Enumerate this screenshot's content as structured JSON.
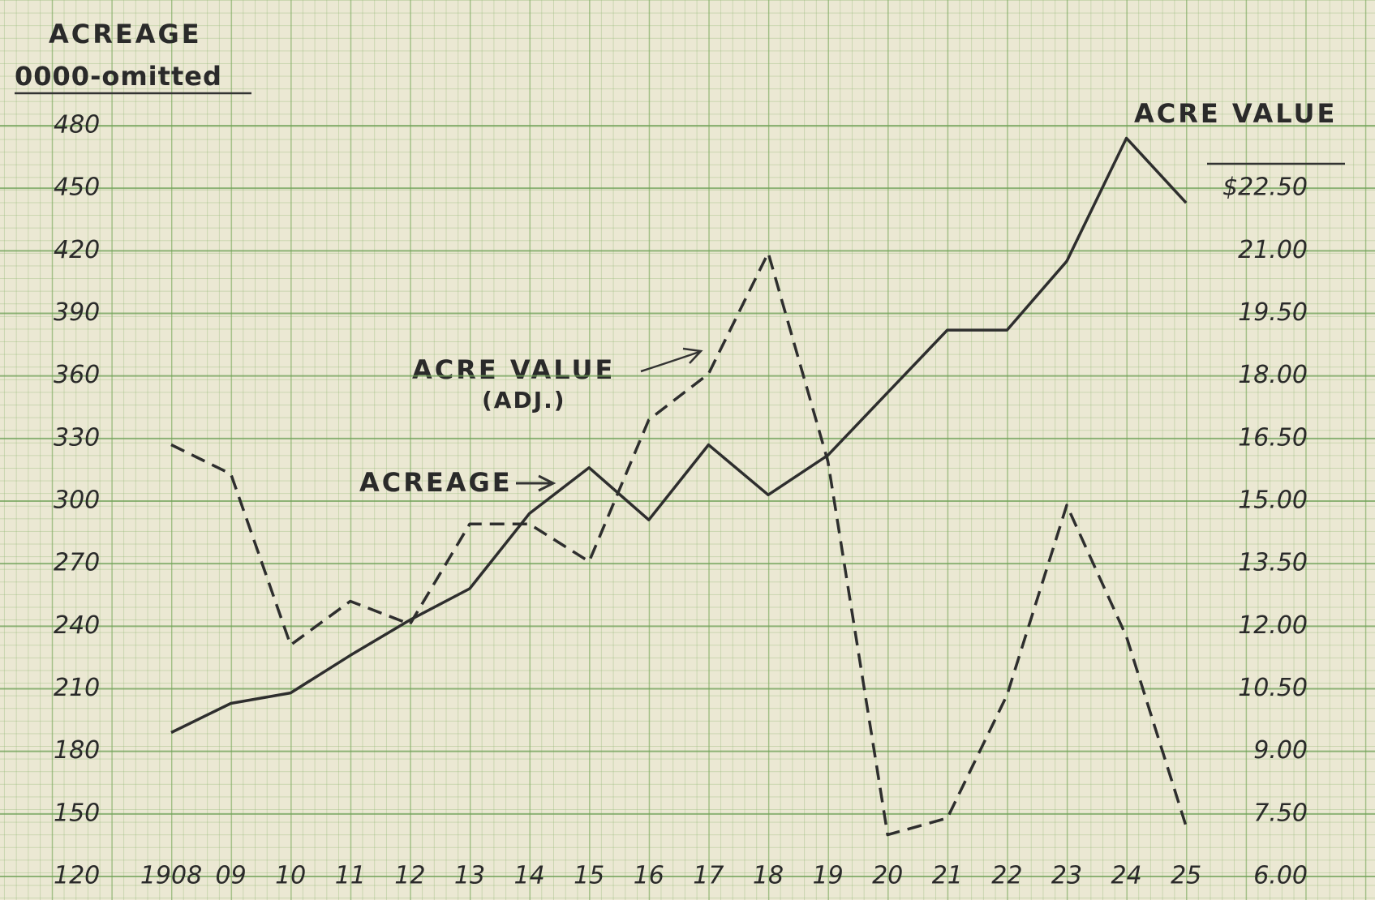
{
  "chart_data": {
    "type": "line",
    "y_label": "ACREAGE",
    "y_label_note": "0000-omitted",
    "y2_label": "ACRE VALUE",
    "annotations": [
      "(ADJ.)"
    ],
    "categories": [
      "1908",
      "09",
      "10",
      "11",
      "12",
      "13",
      "14",
      "15",
      "16",
      "17",
      "18",
      "19",
      "20",
      "21",
      "22",
      "23",
      "24",
      "25"
    ],
    "series": [
      {
        "name": "ACREAGE",
        "color": "#2e2e2e",
        "dashed": false,
        "values": [
          189,
          203,
          208,
          226,
          243,
          258,
          294,
          316,
          291,
          327,
          303,
          322,
          352,
          382,
          382,
          415,
          474,
          443
        ]
      },
      {
        "name": "ACRE VALUE",
        "color": "#2e2e2e",
        "dashed": true,
        "axis": "y2",
        "values": [
          16.35,
          15.65,
          11.55,
          12.6,
          12.05,
          14.45,
          14.45,
          13.55,
          16.95,
          18.05,
          20.95,
          15.95,
          7.0,
          7.4,
          10.35,
          14.9,
          11.75,
          7.2
        ]
      }
    ],
    "ylim": [
      120,
      480
    ],
    "yticks": [
      120,
      150,
      180,
      210,
      240,
      270,
      300,
      330,
      360,
      390,
      420,
      450,
      480
    ],
    "y2lim": [
      6,
      24
    ],
    "y2ticks": [
      {
        "value": 6,
        "label": "6.00"
      },
      {
        "value": 7.5,
        "label": "7.50"
      },
      {
        "value": 9,
        "label": "9.00"
      },
      {
        "value": 10.5,
        "label": "10.50"
      },
      {
        "value": 12,
        "label": "12.00"
      },
      {
        "value": 13.5,
        "label": "13.50"
      },
      {
        "value": 15,
        "label": "15.00"
      },
      {
        "value": 16.5,
        "label": "16.50"
      },
      {
        "value": 18,
        "label": "18.00"
      },
      {
        "value": 19.5,
        "label": "19.50"
      },
      {
        "value": 21,
        "label": "21.00"
      },
      {
        "value": 22.5,
        "label": "$22.50"
      }
    ],
    "grid": true
  }
}
